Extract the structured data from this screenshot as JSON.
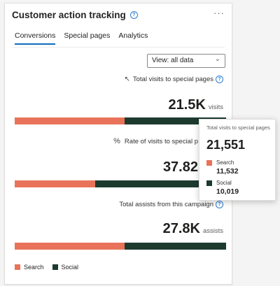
{
  "card": {
    "title": "Customer action tracking",
    "more_label": "···"
  },
  "tabs": [
    {
      "label": "Conversions",
      "active": true
    },
    {
      "label": "Special pages",
      "active": false
    },
    {
      "label": "Analytics",
      "active": false
    }
  ],
  "view_select": {
    "value": "View: all data",
    "chevron": "⌄"
  },
  "icons": {
    "help": "?",
    "cursor": "pointer-cursor-icon",
    "percent": "%"
  },
  "colors": {
    "search": "#e8735a",
    "social": "#1c3b2e",
    "accent": "#0f6cbd"
  },
  "sections": [
    {
      "label": "Total visits to special pages",
      "value": "21.5K",
      "unit": "visits",
      "search_fraction": 0.52
    },
    {
      "label": "Rate of visits to special p",
      "value": "37.82",
      "unit": "",
      "search_fraction": 0.38
    },
    {
      "label": "Total assists from this campaign",
      "value": "27.8K",
      "unit": "assists",
      "search_fraction": 0.52
    }
  ],
  "legend": [
    {
      "label": "Search",
      "color": "#e8735a"
    },
    {
      "label": "Social",
      "color": "#1c3b2e"
    }
  ],
  "tooltip": {
    "title": "Total visits to special pages",
    "total": "21,551",
    "rows": [
      {
        "label": "Search",
        "value": "11,532",
        "color": "#e8735a"
      },
      {
        "label": "Social",
        "value": "10,019",
        "color": "#1c3b2e"
      }
    ]
  }
}
